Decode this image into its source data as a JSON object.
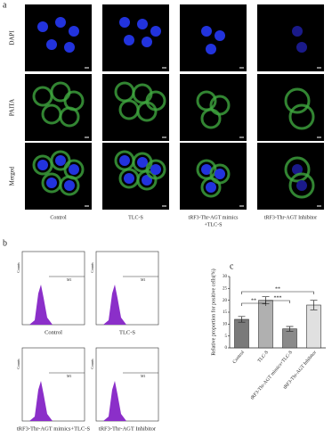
{
  "panel_a": {
    "label": "a",
    "rows": [
      "DAPI",
      "PAITA",
      "Merged"
    ],
    "columns": [
      [
        "Control"
      ],
      [
        "TLC-S"
      ],
      [
        "tRF3-Thr-AGT mimics",
        "+TLC-S"
      ],
      [
        "tRF3-Thr-AGT Inhibitor"
      ]
    ]
  },
  "panel_b": {
    "label": "b",
    "plots": [
      {
        "title": "Control",
        "gate": "M1",
        "ylabel": "Counts"
      },
      {
        "title": "TLC-S",
        "gate": "M1",
        "ylabel": "Counts"
      },
      {
        "title": "tRF3-Thr-AGT mimics+TLC-S",
        "gate": "M1",
        "ylabel": "Counts"
      },
      {
        "title": "tRF3-Thr-AGT Inhibitor",
        "gate": "M1",
        "ylabel": "Counts"
      }
    ]
  },
  "panel_c": {
    "label": "c",
    "chart_data": {
      "type": "bar",
      "ylabel": "Relative proportion for positive cells(%)",
      "categories": [
        "Control",
        "TLC-S",
        "tRF3-Thr-AGT mimics+TLC-S",
        "tRF3-Thr-AGT Inhibitor"
      ],
      "values": [
        12,
        20,
        8,
        18
      ],
      "errors": [
        1.2,
        1.5,
        1.0,
        2.0
      ],
      "colors": [
        "#7a7a7a",
        "#b0b0b0",
        "#8a8a8a",
        "#e0e0e0"
      ],
      "ylim": [
        0,
        30
      ],
      "yticks": [
        0,
        5,
        10,
        15,
        20,
        25,
        30
      ],
      "annotations": [
        "**",
        "***",
        "**"
      ]
    }
  }
}
